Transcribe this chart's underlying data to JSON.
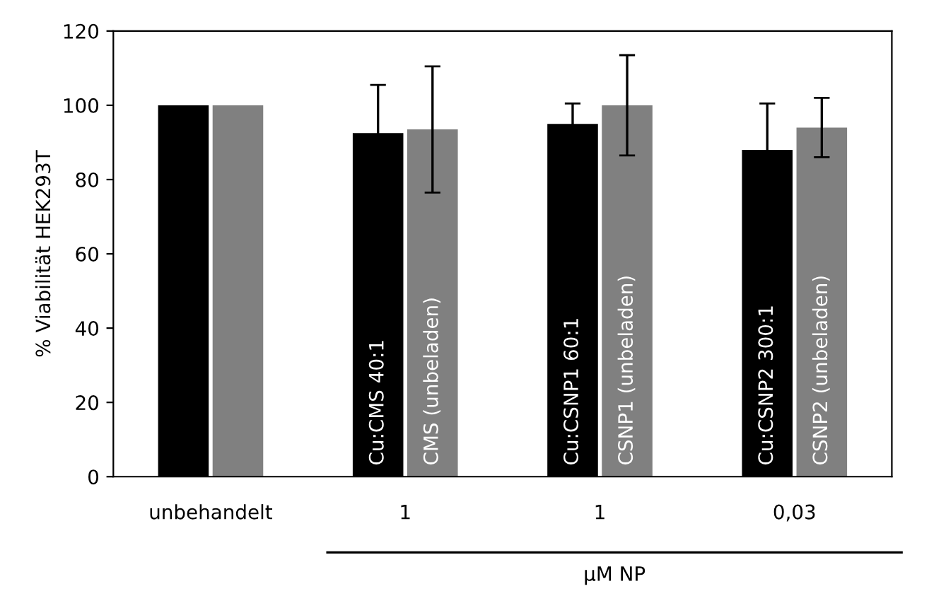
{
  "chart_data": {
    "type": "bar",
    "ylabel": "% Viabilität HEK293T",
    "xlabel": "µM NP",
    "categories": [
      "unbehandelt",
      "1",
      "1",
      "0,03"
    ],
    "series": [
      {
        "color": "#000000",
        "values": [
          100,
          92.5,
          95,
          88
        ],
        "errors": [
          null,
          13,
          5.5,
          12.5
        ]
      },
      {
        "color": "#808080",
        "values": [
          100,
          93.5,
          100,
          94
        ],
        "errors": [
          null,
          17,
          13.5,
          8
        ]
      }
    ],
    "ylim": [
      0,
      120
    ],
    "yticks": [
      0,
      20,
      40,
      60,
      80,
      100,
      120
    ],
    "grid": false,
    "legend": false,
    "annotations": [
      "Cu:CMS 40:1",
      "CMS (unbeladen)",
      "Cu:CSNP1 60:1",
      "CSNP1 (unbeladen)",
      "Cu:CSNP2 300:1",
      "CSNP2 (unbeladen)"
    ]
  }
}
